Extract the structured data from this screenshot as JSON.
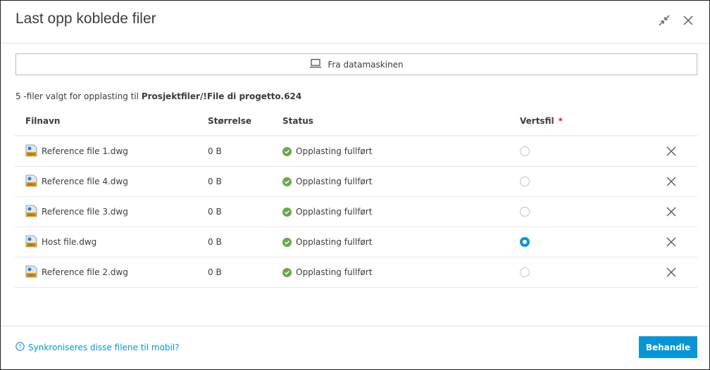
{
  "dialog": {
    "title": "Last opp koblede filer",
    "icons": [
      "collapse-icon",
      "close-icon"
    ]
  },
  "upload_button": {
    "label": "Fra datamaskinen",
    "icon": "laptop-icon"
  },
  "info": {
    "prefix": "5 -filer valgt for opplasting til",
    "path": "Prosjektfiler/!File di progetto.624"
  },
  "table": {
    "headers": {
      "name": "Filnavn",
      "size": "Størrelse",
      "status": "Status",
      "host": "Vertsfil",
      "required": "*"
    },
    "rows": [
      {
        "name": "Reference file 1.dwg",
        "size": "0 B",
        "status": "Opplasting fullført",
        "host": false
      },
      {
        "name": "Reference file 4.dwg",
        "size": "0 B",
        "status": "Opplasting fullført",
        "host": false
      },
      {
        "name": "Reference file 3.dwg",
        "size": "0 B",
        "status": "Opplasting fullført",
        "host": false
      },
      {
        "name": "Host file.dwg",
        "size": "0 B",
        "status": "Opplasting fullført",
        "host": true
      },
      {
        "name": "Reference file 2.dwg",
        "size": "0 B",
        "status": "Opplasting fullført",
        "host": false
      }
    ]
  },
  "footer": {
    "help": "Synkroniseres disse filene til mobil?",
    "submit": "Behandle"
  },
  "colors": {
    "accent": "#0696d7",
    "success": "#6aa84f",
    "required": "#e02020"
  }
}
